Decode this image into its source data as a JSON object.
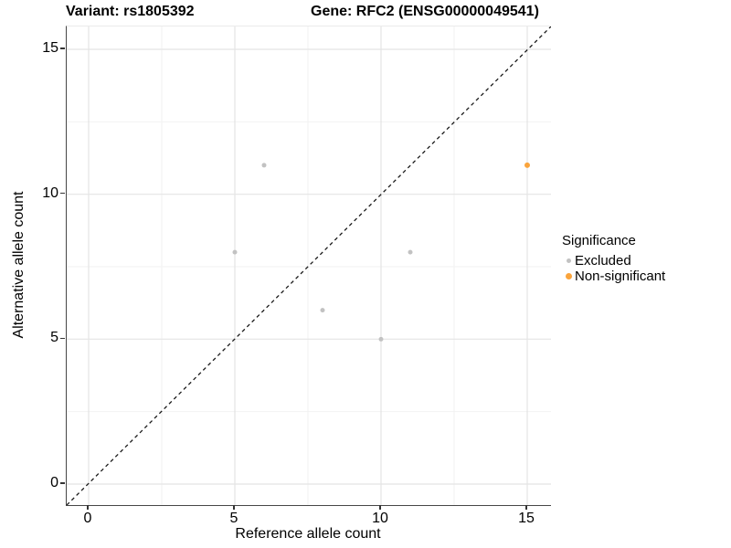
{
  "title": {
    "variant": "Variant: rs1805392",
    "gene": "Gene: RFC2 (ENSG00000049541)"
  },
  "chart_data": {
    "type": "scatter",
    "xlabel": "Reference allele count",
    "ylabel": "Alternative allele count",
    "xlim": [
      0,
      15
    ],
    "ylim": [
      0,
      15
    ],
    "xticks": [
      0,
      5,
      10,
      15
    ],
    "yticks": [
      0,
      5,
      10,
      15
    ],
    "minor_xticks": [
      2.5,
      7.5,
      12.5
    ],
    "minor_yticks": [
      2.5,
      7.5,
      12.5
    ],
    "grid": true,
    "identity_line": {
      "style": "dashed",
      "slope": 1,
      "intercept": 0,
      "color": "#1a1a1a"
    },
    "series": [
      {
        "name": "Excluded",
        "color": "#c2c2c2",
        "points": [
          [
            6,
            11
          ],
          [
            5,
            8
          ],
          [
            11,
            8
          ],
          [
            8,
            6
          ],
          [
            10,
            5
          ]
        ]
      },
      {
        "name": "Non-significant",
        "color": "#faa43c",
        "points": [
          [
            15,
            11
          ]
        ]
      }
    ],
    "legend": {
      "title": "Significance",
      "position": "right"
    }
  }
}
